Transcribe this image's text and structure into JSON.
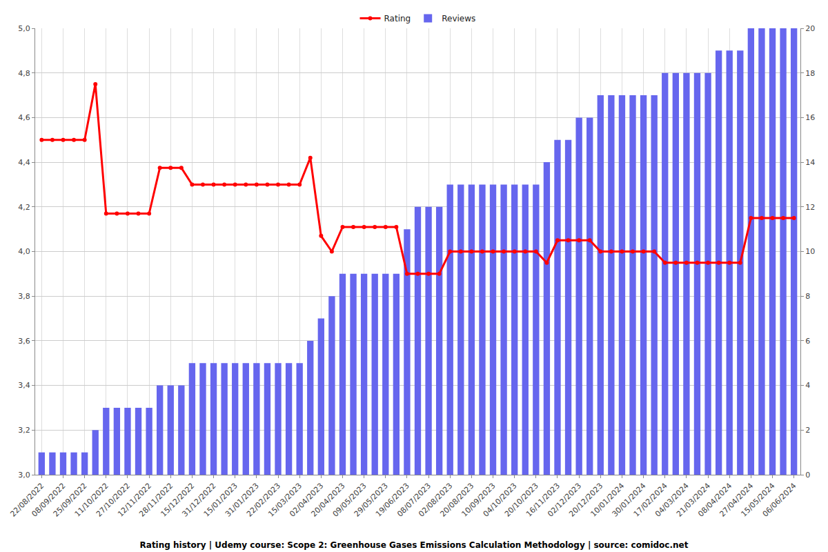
{
  "chart_data": {
    "type": "bar",
    "title": "Rating history | Udemy course: Scope 2: Greenhouse Gases Emissions Calculation Methodology | source: comidoc.net",
    "categories": [
      "22/08/2022",
      null,
      "08/09/2022",
      null,
      "25/09/2022",
      null,
      "11/10/2022",
      null,
      "27/10/2022",
      null,
      "12/11/2022",
      null,
      "28/11/2022",
      null,
      "15/12/2022",
      null,
      "31/12/2022",
      null,
      "15/01/2023",
      null,
      "31/01/2023",
      null,
      "22/02/2023",
      null,
      "15/03/2023",
      null,
      "02/04/2023",
      null,
      "20/04/2023",
      null,
      "09/05/2023",
      null,
      "29/05/2023",
      null,
      "19/06/2023",
      null,
      "08/07/2023",
      null,
      "02/08/2023",
      null,
      "20/08/2023",
      null,
      "10/09/2023",
      null,
      "04/10/2023",
      null,
      "20/10/2023",
      null,
      "16/11/2023",
      null,
      "02/12/2023",
      null,
      "20/12/2023",
      null,
      "10/01/2024",
      null,
      "30/01/2024",
      null,
      "17/02/2024",
      null,
      "04/03/2024",
      null,
      "21/03/2024",
      null,
      "08/04/2024",
      null,
      "27/04/2024",
      null,
      "15/05/2024",
      null,
      "06/06/2024"
    ],
    "series": [
      {
        "name": "Rating",
        "type": "line",
        "color": "#ff0000",
        "marker": "circle",
        "values": [
          4.5,
          4.5,
          4.5,
          4.5,
          4.5,
          4.75,
          4.17,
          4.17,
          4.17,
          4.17,
          4.17,
          4.375,
          4.375,
          4.375,
          4.3,
          4.3,
          4.3,
          4.3,
          4.3,
          4.3,
          4.3,
          4.3,
          4.3,
          4.3,
          4.3,
          4.42,
          4.07,
          4.0,
          4.11,
          4.11,
          4.11,
          4.11,
          4.11,
          4.11,
          3.9,
          3.9,
          3.9,
          3.9,
          4.0,
          4.0,
          4.0,
          4.0,
          4.0,
          4.0,
          4.0,
          4.0,
          4.0,
          3.95,
          4.05,
          4.05,
          4.05,
          4.05,
          4.0,
          4.0,
          4.0,
          4.0,
          4.0,
          4.0,
          3.95,
          3.95,
          3.95,
          3.95,
          3.95,
          3.95,
          3.95,
          3.95,
          4.15,
          4.15,
          4.15,
          4.15,
          4.15
        ]
      },
      {
        "name": "Reviews",
        "type": "bar",
        "axis": "y2",
        "color": "#6666ee",
        "values": [
          1,
          1,
          1,
          1,
          1,
          2,
          3,
          3,
          3,
          3,
          3,
          4,
          4,
          4,
          5,
          5,
          5,
          5,
          5,
          5,
          5,
          5,
          5,
          5,
          5,
          6,
          7,
          8,
          9,
          9,
          9,
          9,
          9,
          9,
          11,
          12,
          12,
          12,
          13,
          13,
          13,
          13,
          13,
          13,
          13,
          13,
          13,
          14,
          15,
          15,
          16,
          16,
          17,
          17,
          17,
          17,
          17,
          17,
          18,
          18,
          18,
          18,
          18,
          19,
          19,
          19,
          20,
          20,
          20,
          20,
          20
        ]
      }
    ],
    "ylim": [
      3,
      5
    ],
    "yticks": [
      {
        "value": 3,
        "label": "3,0"
      },
      {
        "value": 3.2,
        "label": "3,2"
      },
      {
        "value": 3.4,
        "label": "3,4"
      },
      {
        "value": 3.6,
        "label": "3,6"
      },
      {
        "value": 3.8,
        "label": "3,8"
      },
      {
        "value": 4,
        "label": "4,0"
      },
      {
        "value": 4.2,
        "label": "4,2"
      },
      {
        "value": 4.4,
        "label": "4,4"
      },
      {
        "value": 4.6,
        "label": "4,6"
      },
      {
        "value": 4.8,
        "label": "4,8"
      },
      {
        "value": 5,
        "label": "5,0"
      }
    ],
    "y2lim": [
      0,
      20
    ],
    "y2ticks": [
      0,
      2,
      4,
      6,
      8,
      10,
      12,
      14,
      16,
      18,
      20
    ],
    "grid": true,
    "legend": "top"
  }
}
